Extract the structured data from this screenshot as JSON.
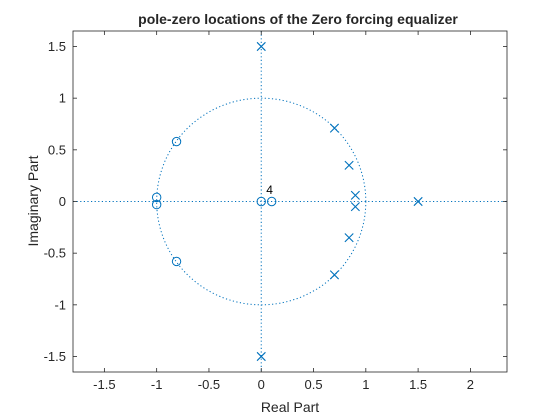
{
  "chart_data": {
    "type": "scatter",
    "title": "pole-zero locations of the Zero forcing equalizer",
    "xlabel": "Real Part",
    "ylabel": "Imaginary Part",
    "xlim": [
      -1.8,
      2.35
    ],
    "ylim": [
      -1.65,
      1.65
    ],
    "xticks": [
      -1.5,
      -1,
      -0.5,
      0,
      0.5,
      1,
      1.5,
      2
    ],
    "xtick_labels": [
      "-1.5",
      "-1",
      "-0.5",
      "0",
      "0.5",
      "1",
      "1.5",
      "2"
    ],
    "yticks": [
      -1.5,
      -1,
      -0.5,
      0,
      0.5,
      1,
      1.5
    ],
    "ytick_labels": [
      "-1.5",
      "-1",
      "-0.5",
      "0",
      "0.5",
      "1",
      "1.5"
    ],
    "grid": false,
    "unit_circle": true,
    "series": [
      {
        "marker": "circle",
        "points": [
          {
            "x": -0.81,
            "y": 0.58
          },
          {
            "x": -0.81,
            "y": -0.58
          },
          {
            "x": -1.0,
            "y": 0.04
          },
          {
            "x": -1.0,
            "y": -0.03
          },
          {
            "x": 0.0,
            "y": 0.0
          },
          {
            "x": 0.1,
            "y": 0.0
          }
        ]
      },
      {
        "marker": "x",
        "points": [
          {
            "x": 0.0,
            "y": 1.5
          },
          {
            "x": 0.0,
            "y": -1.5
          },
          {
            "x": 0.7,
            "y": 0.71
          },
          {
            "x": 0.7,
            "y": -0.71
          },
          {
            "x": 0.84,
            "y": 0.35
          },
          {
            "x": 0.84,
            "y": -0.35
          },
          {
            "x": 0.9,
            "y": 0.06
          },
          {
            "x": 0.9,
            "y": -0.05
          },
          {
            "x": 1.5,
            "y": 0.0
          }
        ]
      }
    ],
    "annotations": [
      {
        "text": "4",
        "x": 0.08,
        "y": 0.08
      }
    ],
    "colors": {
      "marker": "#0072BD",
      "axes": "#262626",
      "background": "#ffffff"
    }
  }
}
